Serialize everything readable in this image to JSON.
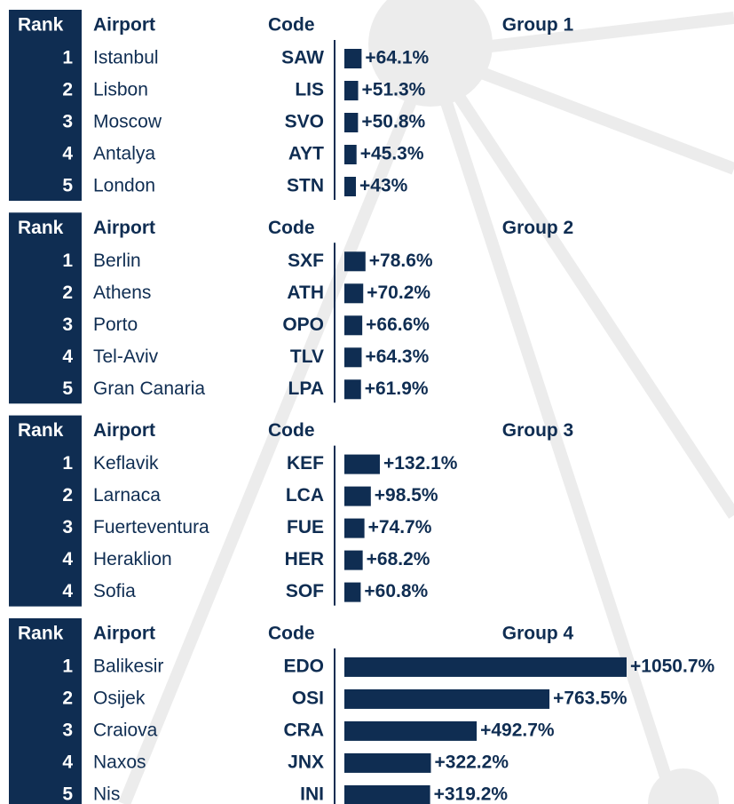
{
  "groups": [
    {
      "header": {
        "rank": "Rank",
        "airport": "Airport",
        "code": "Code",
        "group": "Group 1"
      },
      "rows": [
        {
          "rank": "1",
          "airport": "Istanbul",
          "code": "SAW",
          "value": 64.1,
          "value_label": "+64.1%"
        },
        {
          "rank": "2",
          "airport": "Lisbon",
          "code": "LIS",
          "value": 51.3,
          "value_label": "+51.3%"
        },
        {
          "rank": "3",
          "airport": "Moscow",
          "code": "SVO",
          "value": 50.8,
          "value_label": "+50.8%"
        },
        {
          "rank": "4",
          "airport": "Antalya",
          "code": "AYT",
          "value": 45.3,
          "value_label": "+45.3%"
        },
        {
          "rank": "5",
          "airport": "London",
          "code": "STN",
          "value": 43,
          "value_label": "+43%"
        }
      ]
    },
    {
      "header": {
        "rank": "Rank",
        "airport": "Airport",
        "code": "Code",
        "group": "Group 2"
      },
      "rows": [
        {
          "rank": "1",
          "airport": "Berlin",
          "code": "SXF",
          "value": 78.6,
          "value_label": "+78.6%"
        },
        {
          "rank": "2",
          "airport": "Athens",
          "code": "ATH",
          "value": 70.2,
          "value_label": "+70.2%"
        },
        {
          "rank": "3",
          "airport": "Porto",
          "code": "OPO",
          "value": 66.6,
          "value_label": "+66.6%"
        },
        {
          "rank": "4",
          "airport": "Tel-Aviv",
          "code": "TLV",
          "value": 64.3,
          "value_label": "+64.3%"
        },
        {
          "rank": "5",
          "airport": "Gran Canaria",
          "code": "LPA",
          "value": 61.9,
          "value_label": "+61.9%"
        }
      ]
    },
    {
      "header": {
        "rank": "Rank",
        "airport": "Airport",
        "code": "Code",
        "group": "Group 3"
      },
      "rows": [
        {
          "rank": "1",
          "airport": "Keflavik",
          "code": "KEF",
          "value": 132.1,
          "value_label": "+132.1%"
        },
        {
          "rank": "2",
          "airport": "Larnaca",
          "code": "LCA",
          "value": 98.5,
          "value_label": "+98.5%"
        },
        {
          "rank": "3",
          "airport": "Fuerteventura",
          "code": "FUE",
          "value": 74.7,
          "value_label": "+74.7%"
        },
        {
          "rank": "4",
          "airport": "Heraklion",
          "code": "HER",
          "value": 68.2,
          "value_label": "+68.2%"
        },
        {
          "rank": "4",
          "airport": "Sofia",
          "code": "SOF",
          "value": 60.8,
          "value_label": "+60.8%"
        }
      ]
    },
    {
      "header": {
        "rank": "Rank",
        "airport": "Airport",
        "code": "Code",
        "group": "Group 4"
      },
      "rows": [
        {
          "rank": "1",
          "airport": "Balikesir",
          "code": "EDO",
          "value": 1050.7,
          "value_label": "+1050.7%"
        },
        {
          "rank": "2",
          "airport": "Osijek",
          "code": "OSI",
          "value": 763.5,
          "value_label": "+763.5%"
        },
        {
          "rank": "3",
          "airport": "Craiova",
          "code": "CRA",
          "value": 492.7,
          "value_label": "+492.7%"
        },
        {
          "rank": "4",
          "airport": "Naxos",
          "code": "JNX",
          "value": 322.2,
          "value_label": "+322.2%"
        },
        {
          "rank": "5",
          "airport": "Nis",
          "code": "INI",
          "value": 319.2,
          "value_label": "+319.2%"
        }
      ]
    }
  ]
}
